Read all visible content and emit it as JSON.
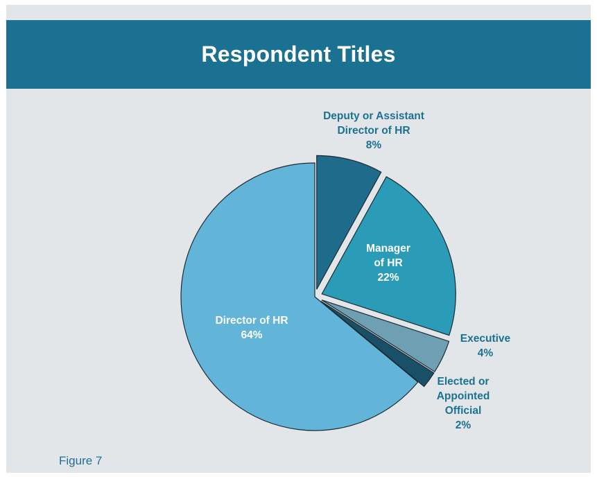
{
  "chart_data": {
    "type": "pie",
    "title": "Respondent Titles",
    "slices": [
      {
        "label_lines": [
          "Deputy or Assistant",
          "Director of HR",
          "8%"
        ],
        "value": 8,
        "color": "#1f6b8c",
        "exploded": true
      },
      {
        "label_lines": [
          "Manager",
          "of HR",
          "22%"
        ],
        "value": 22,
        "color": "#2b9cb8",
        "exploded": true
      },
      {
        "label_lines": [
          "Executive",
          "4%"
        ],
        "value": 4,
        "color": "#6e9fb2",
        "exploded": true
      },
      {
        "label_lines": [
          "Elected or",
          "Appointed",
          "Official",
          "2%"
        ],
        "value": 2,
        "color": "#1a4f68",
        "exploded": true
      },
      {
        "label_lines": [
          "Director of HR",
          "64%"
        ],
        "value": 64,
        "color": "#62b4d8",
        "exploded": false
      }
    ],
    "outside_label_color": "#1b7192",
    "inside_label_color": "#ffffff"
  },
  "caption": "Figure 7"
}
